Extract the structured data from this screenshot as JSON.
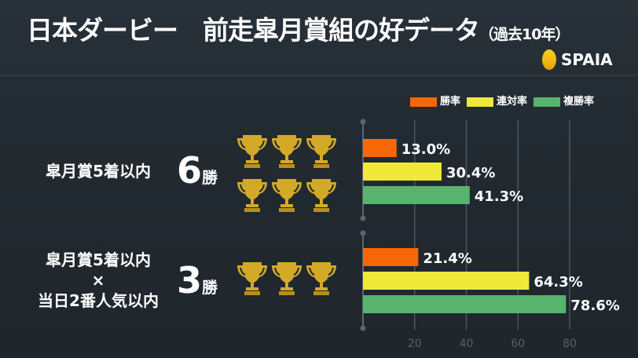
{
  "title": {
    "main": "日本ダービー　前走皐月賞組の好データ",
    "sub": "（過去10年）"
  },
  "logo": "SPAIA",
  "legend": [
    {
      "label": "勝率",
      "color": "#f76707"
    },
    {
      "label": "連対率",
      "color": "#f0e93a"
    },
    {
      "label": "複勝率",
      "color": "#57b36e"
    }
  ],
  "rows": [
    {
      "label_lines": [
        "皐月賞5着以内"
      ],
      "wins": "6",
      "wins_unit": "勝",
      "trophies": 6
    },
    {
      "label_lines": [
        "皐月賞5着以内",
        "×",
        "当日2番人気以内"
      ],
      "wins": "3",
      "wins_unit": "勝",
      "trophies": 3
    }
  ],
  "chart_data": {
    "type": "bar",
    "orientation": "horizontal",
    "categories": [
      "皐月賞5着以内",
      "皐月賞5着以内×当日2番人気以内"
    ],
    "series": [
      {
        "name": "勝率",
        "values": [
          13.0,
          21.4
        ],
        "labels": [
          "13.0%",
          "21.4%"
        ]
      },
      {
        "name": "連対率",
        "values": [
          30.4,
          64.3
        ],
        "labels": [
          "30.4%",
          "64.3%"
        ]
      },
      {
        "name": "複勝率",
        "values": [
          41.3,
          78.6
        ],
        "labels": [
          "41.3%",
          "78.6%"
        ]
      }
    ],
    "xticks": [
      "20",
      "40",
      "60",
      "80"
    ],
    "xlim": [
      0,
      80
    ],
    "grid": true,
    "legend": "top-right"
  }
}
